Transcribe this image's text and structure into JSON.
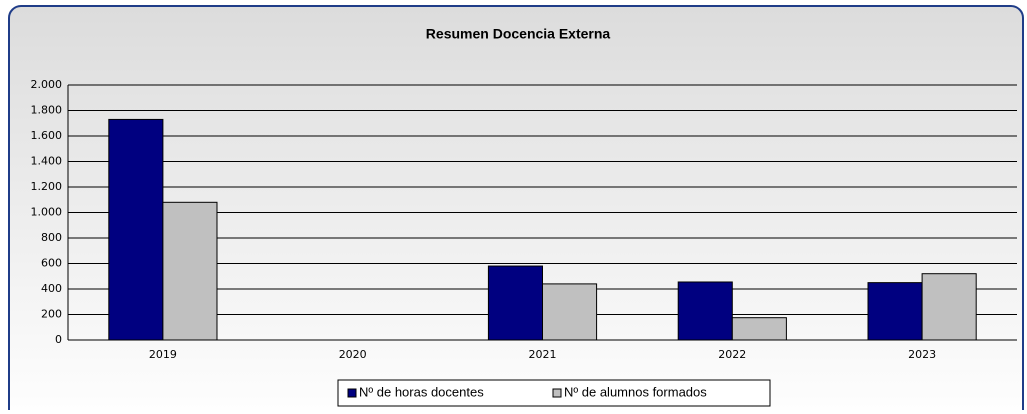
{
  "chart_data": {
    "type": "bar",
    "title": "Resumen Docencia Externa",
    "categories": [
      "2019",
      "2020",
      "2021",
      "2022",
      "2023"
    ],
    "series": [
      {
        "name": "Nº de horas docentes",
        "color": "#000080",
        "values": [
          1730,
          0,
          580,
          455,
          450
        ]
      },
      {
        "name": "Nº de alumnos formados",
        "color": "#c0c0c0",
        "values": [
          1080,
          0,
          440,
          175,
          520
        ]
      }
    ],
    "ylim": [
      0,
      2000
    ],
    "yticks": [
      0,
      200,
      400,
      600,
      800,
      {
        "value": 1000,
        "label": "1.000"
      },
      {
        "value": 1200,
        "label": "1.200"
      },
      {
        "value": 1400,
        "label": "1.400"
      },
      {
        "value": 1600,
        "label": "1.600"
      },
      {
        "value": 1800,
        "label": "1.800"
      },
      {
        "value": 2000,
        "label": "2.000"
      }
    ],
    "grid": true,
    "legend": "bottom"
  }
}
